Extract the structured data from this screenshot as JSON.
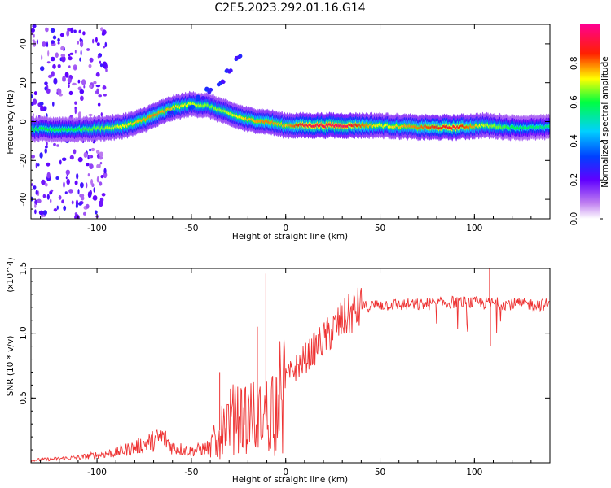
{
  "figure": {
    "title": "C2E5.2023.292.01.16.G14"
  },
  "chart_data": [
    {
      "type": "heatmap",
      "xlabel": "Height of straight line (km)",
      "ylabel": "Frequency (Hz)",
      "xlim": [
        -135,
        140
      ],
      "ylim": [
        -50,
        50
      ],
      "x_ticks": [
        -100,
        -50,
        0,
        50,
        100
      ],
      "y_ticks": [
        -40,
        -20,
        0,
        20,
        40
      ],
      "colorbar": {
        "label": "Normalized spectral amplitude",
        "range": [
          0,
          1
        ],
        "ticks": [
          "0.0",
          "0.2",
          "0.4",
          "0.6",
          "0.8"
        ],
        "colors": [
          "#ffffff",
          "#a020f0",
          "#0000ff",
          "#00c8ff",
          "#00ff60",
          "#ffff00",
          "#ff8c00",
          "#ff0000",
          "#ff00a0"
        ]
      },
      "ridge": [
        {
          "x": -130,
          "y": -4,
          "amp": 0.6
        },
        {
          "x": -110,
          "y": -4,
          "amp": 0.6
        },
        {
          "x": -90,
          "y": -3,
          "amp": 0.7
        },
        {
          "x": -80,
          "y": -1,
          "amp": 0.75
        },
        {
          "x": -70,
          "y": 3,
          "amp": 0.8
        },
        {
          "x": -60,
          "y": 7,
          "amp": 0.75
        },
        {
          "x": -50,
          "y": 9,
          "amp": 0.7
        },
        {
          "x": -40,
          "y": 8,
          "amp": 0.65
        },
        {
          "x": -30,
          "y": 4,
          "amp": 0.7
        },
        {
          "x": -20,
          "y": 1,
          "amp": 0.75
        },
        {
          "x": -10,
          "y": 0,
          "amp": 0.8
        },
        {
          "x": 0,
          "y": -2,
          "amp": 0.75
        },
        {
          "x": 10,
          "y": -2,
          "amp": 0.9
        },
        {
          "x": 30,
          "y": -2,
          "amp": 0.95
        },
        {
          "x": 50,
          "y": -2,
          "amp": 0.7
        },
        {
          "x": 70,
          "y": -3,
          "amp": 0.8
        },
        {
          "x": 90,
          "y": -3,
          "amp": 0.9
        },
        {
          "x": 105,
          "y": -2,
          "amp": 0.7
        },
        {
          "x": 120,
          "y": -3,
          "amp": 0.6
        },
        {
          "x": 140,
          "y": -3,
          "amp": 0.55
        }
      ],
      "secondary_branch": [
        {
          "x": -60,
          "y": 5
        },
        {
          "x": -50,
          "y": 8
        },
        {
          "x": -45,
          "y": 12
        },
        {
          "x": -40,
          "y": 16
        },
        {
          "x": -35,
          "y": 20
        },
        {
          "x": -30,
          "y": 26
        },
        {
          "x": -25,
          "y": 33
        }
      ]
    },
    {
      "type": "line",
      "xlabel": "Height of straight line (km)",
      "ylabel": "SNR (10 * v/v)",
      "y_multiplier": "(x10^4)",
      "xlim": [
        -135,
        140
      ],
      "ylim": [
        0,
        15000
      ],
      "x_ticks": [
        -100,
        -50,
        0,
        50,
        100
      ],
      "y_ticks": [
        5000,
        10000,
        15000
      ],
      "y_tick_labels": [
        "0.5",
        "1.0",
        "1.5"
      ],
      "color": "#ee3333",
      "envelope": [
        {
          "x": -135,
          "y": 200
        },
        {
          "x": -110,
          "y": 400
        },
        {
          "x": -90,
          "y": 800
        },
        {
          "x": -80,
          "y": 1200
        },
        {
          "x": -70,
          "y": 1700
        },
        {
          "x": -65,
          "y": 2000
        },
        {
          "x": -60,
          "y": 1200
        },
        {
          "x": -50,
          "y": 900
        },
        {
          "x": -40,
          "y": 1200
        },
        {
          "x": -35,
          "y": 2500
        },
        {
          "x": -30,
          "y": 3500
        },
        {
          "x": -20,
          "y": 4000
        },
        {
          "x": -12,
          "y": 3500
        },
        {
          "x": -8,
          "y": 4500
        },
        {
          "x": 0,
          "y": 6500
        },
        {
          "x": 10,
          "y": 8000
        },
        {
          "x": 20,
          "y": 9500
        },
        {
          "x": 30,
          "y": 11000
        },
        {
          "x": 40,
          "y": 12000
        },
        {
          "x": 50,
          "y": 12200
        },
        {
          "x": 70,
          "y": 12200
        },
        {
          "x": 90,
          "y": 12400
        },
        {
          "x": 110,
          "y": 12300
        },
        {
          "x": 140,
          "y": 12200
        }
      ],
      "spikes": [
        {
          "x": -10.5,
          "y": 14600
        },
        {
          "x": -15,
          "y": 10500
        },
        {
          "x": -35,
          "y": 7000
        },
        {
          "x": 108,
          "y": 15000
        },
        {
          "x": 108.5,
          "y": 9000
        }
      ]
    }
  ]
}
